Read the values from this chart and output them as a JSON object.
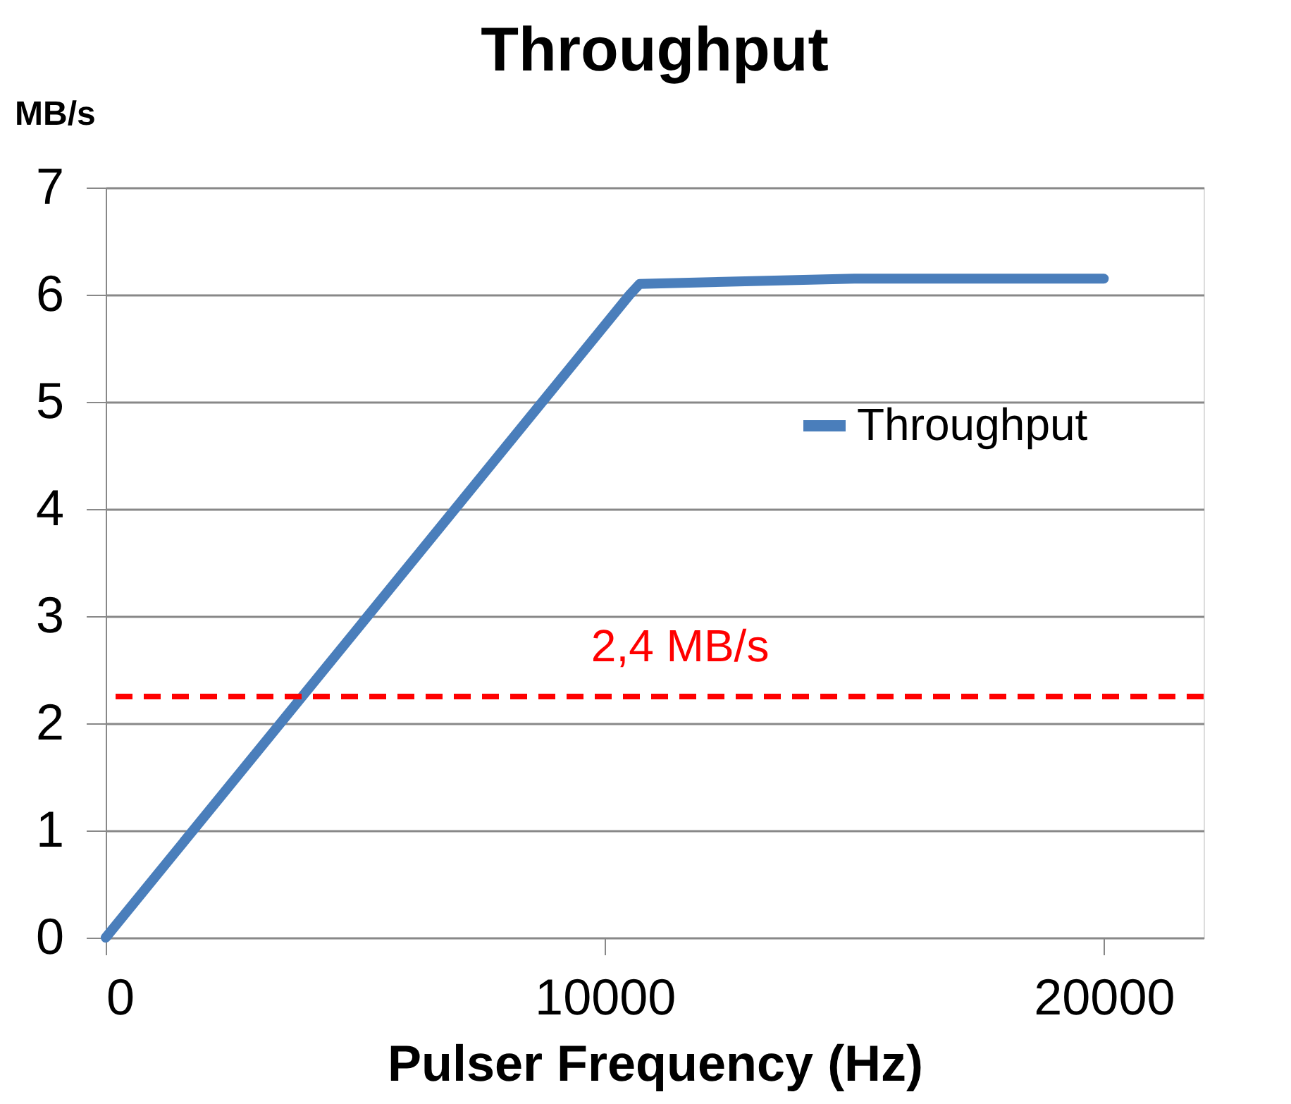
{
  "chart_data": {
    "type": "line",
    "title": "Throughput",
    "xlabel": "Pulser Frequency (Hz)",
    "ylabel": "MB/s",
    "x": [
      0,
      10500,
      10700,
      15000,
      20000
    ],
    "series": [
      {
        "name": "Throughput",
        "color": "#4a7ebb",
        "values": [
          0,
          6.0,
          6.1,
          6.15,
          6.15
        ]
      }
    ],
    "xlim": [
      0,
      22000
    ],
    "xticks": [
      0,
      10000,
      20000
    ],
    "ylim": [
      0,
      7
    ],
    "yticks": [
      0,
      1,
      2,
      3,
      4,
      5,
      6,
      7
    ],
    "grid": "y",
    "legend": "right",
    "marker": "none",
    "line_style": "solid",
    "ref_lines": [
      {
        "axis": "y",
        "value": 2.25,
        "label": "2,4 MB/s",
        "color": "#ff0000",
        "line_style": "dashed"
      }
    ]
  }
}
